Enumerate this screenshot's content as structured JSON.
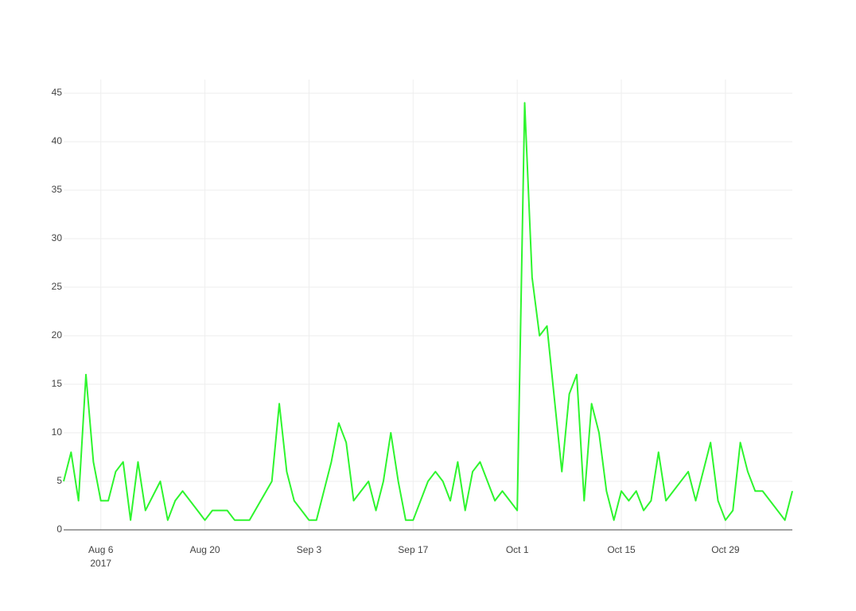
{
  "chart_data": {
    "type": "line",
    "x": [
      "2017-08-01",
      "2017-08-02",
      "2017-08-03",
      "2017-08-04",
      "2017-08-05",
      "2017-08-06",
      "2017-08-07",
      "2017-08-08",
      "2017-08-09",
      "2017-08-10",
      "2017-08-11",
      "2017-08-12",
      "2017-08-14",
      "2017-08-15",
      "2017-08-16",
      "2017-08-17",
      "2017-08-20",
      "2017-08-21",
      "2017-08-22",
      "2017-08-23",
      "2017-08-24",
      "2017-08-25",
      "2017-08-26",
      "2017-08-29",
      "2017-08-30",
      "2017-08-31",
      "2017-09-01",
      "2017-09-03",
      "2017-09-04",
      "2017-09-06",
      "2017-09-07",
      "2017-09-08",
      "2017-09-09",
      "2017-09-11",
      "2017-09-12",
      "2017-09-13",
      "2017-09-14",
      "2017-09-15",
      "2017-09-16",
      "2017-09-17",
      "2017-09-19",
      "2017-09-20",
      "2017-09-21",
      "2017-09-22",
      "2017-09-23",
      "2017-09-24",
      "2017-09-25",
      "2017-09-26",
      "2017-09-28",
      "2017-09-29",
      "2017-10-01",
      "2017-10-02",
      "2017-10-03",
      "2017-10-04",
      "2017-10-05",
      "2017-10-07",
      "2017-10-08",
      "2017-10-09",
      "2017-10-10",
      "2017-10-11",
      "2017-10-12",
      "2017-10-13",
      "2017-10-14",
      "2017-10-15",
      "2017-10-16",
      "2017-10-17",
      "2017-10-18",
      "2017-10-19",
      "2017-10-20",
      "2017-10-21",
      "2017-10-24",
      "2017-10-25",
      "2017-10-27",
      "2017-10-28",
      "2017-10-29",
      "2017-10-30",
      "2017-10-31",
      "2017-11-01",
      "2017-11-02",
      "2017-11-03",
      "2017-11-06",
      "2017-11-07"
    ],
    "series": [
      {
        "color": "#2ef52e",
        "values": [
          5,
          8,
          3,
          16,
          7,
          3,
          3,
          6,
          7,
          1,
          7,
          2,
          5,
          1,
          3,
          4,
          1,
          2,
          2,
          2,
          1,
          1,
          1,
          5,
          13,
          6,
          3,
          1,
          1,
          7,
          11,
          9,
          3,
          5,
          2,
          5,
          10,
          5,
          1,
          1,
          5,
          6,
          5,
          3,
          7,
          2,
          6,
          7,
          3,
          4,
          2,
          44,
          26,
          20,
          21,
          6,
          14,
          16,
          3,
          13,
          10,
          4,
          1,
          4,
          3,
          4,
          2,
          3,
          8,
          3,
          6,
          3,
          9,
          3,
          1,
          2,
          9,
          6,
          4,
          4,
          1,
          4
        ]
      }
    ],
    "xlim": [
      "2017-08-01",
      "2017-11-07"
    ],
    "xticks": [
      {
        "value": "2017-08-06",
        "label": "Aug 6\n2017"
      },
      {
        "value": "2017-08-20",
        "label": "Aug 20"
      },
      {
        "value": "2017-09-03",
        "label": "Sep 3"
      },
      {
        "value": "2017-09-17",
        "label": "Sep 17"
      },
      {
        "value": "2017-10-01",
        "label": "Oct 1"
      },
      {
        "value": "2017-10-15",
        "label": "Oct 15"
      },
      {
        "value": "2017-10-29",
        "label": "Oct 29"
      }
    ],
    "ylim": [
      0,
      46.4
    ],
    "yticks": [
      0,
      5,
      10,
      15,
      20,
      25,
      30,
      35,
      40,
      45
    ],
    "grid": true
  }
}
